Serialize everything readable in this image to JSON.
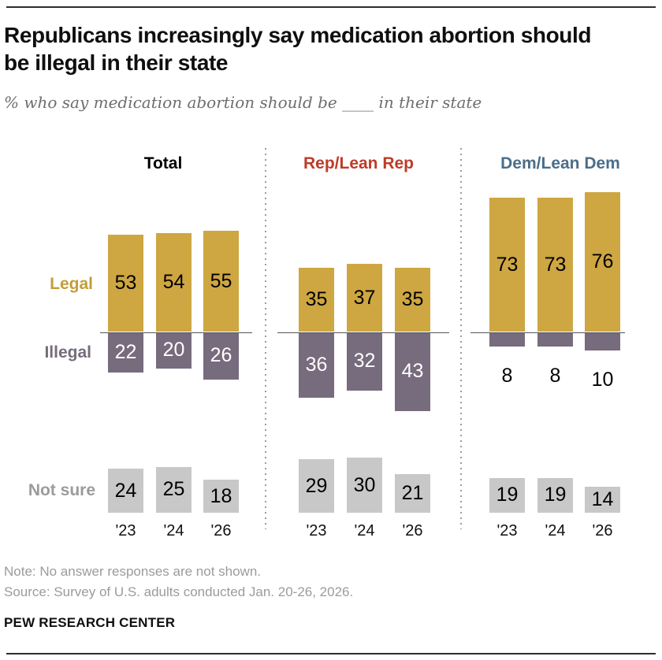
{
  "header": {
    "title": "Republicans increasingly say medication abortion should be illegal in their state",
    "subtitle": "% who say medication abortion should be ____ in their state"
  },
  "chart_data": {
    "type": "bar",
    "title": "Republicans increasingly say medication abortion should be illegal in their state",
    "subtitle": "% who say medication abortion should be ____ in their state",
    "categories": [
      "'23",
      "'24",
      "'26"
    ],
    "series_labels": {
      "legal": "Legal",
      "illegal": "Illegal",
      "not_sure": "Not sure"
    },
    "groups": [
      {
        "label": "Total",
        "label_color": "#000000",
        "legal": [
          53,
          54,
          55
        ],
        "illegal": [
          22,
          20,
          26
        ],
        "not_sure": [
          24,
          25,
          18
        ]
      },
      {
        "label": "Rep/Lean Rep",
        "label_color": "#BE3B28",
        "legal": [
          35,
          37,
          35
        ],
        "illegal": [
          36,
          32,
          43
        ],
        "not_sure": [
          29,
          30,
          21
        ]
      },
      {
        "label": "Dem/Lean Dem",
        "label_color": "#4A6E8A",
        "legal": [
          73,
          73,
          76
        ],
        "illegal": [
          8,
          8,
          10
        ],
        "not_sure": [
          19,
          19,
          14
        ]
      }
    ],
    "colors": {
      "legal_bar": "#CEA642",
      "illegal_bar": "#766C7D",
      "not_sure_bar": "#C8C8C8",
      "legal_label": "#C29D3A",
      "illegal_label": "#766C7D",
      "not_sure_label": "#9B9B9B"
    },
    "layout_hints": {
      "orientation": "diverging",
      "zero_line": true,
      "row_labels_position": "left"
    }
  },
  "footer": {
    "note": "Note: No answer responses are not shown.",
    "source": "Source: Survey of U.S. adults conducted Jan. 20-26, 2026.",
    "brand": "PEW RESEARCH CENTER"
  }
}
